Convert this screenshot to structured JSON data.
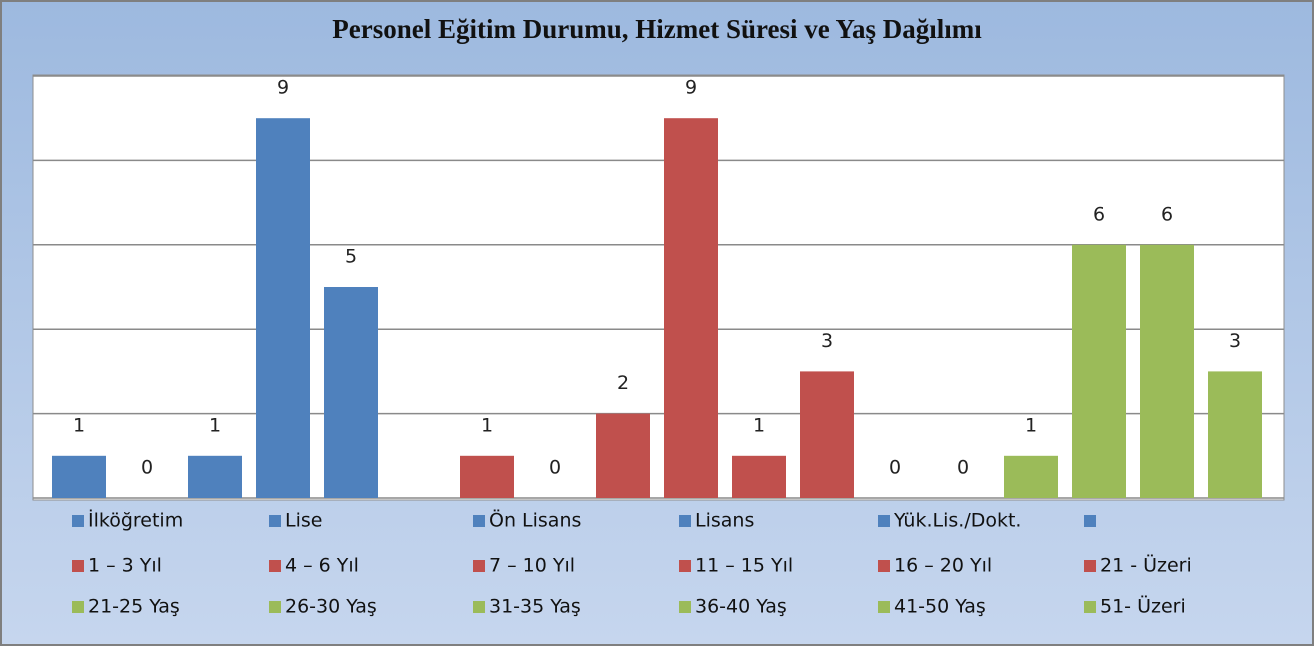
{
  "chart_data": {
    "type": "bar",
    "title": "Personel Eğitim Durumu, Hizmet Süresi ve Yaş Dağılımı",
    "categories": [
      "İlköğretim",
      "Lise",
      "Ön Lisans",
      "Lisans",
      "Yük.Lis./Dokt.",
      null,
      "1 – 3 Yıl",
      "4 – 6 Yıl",
      "7 – 10 Yıl",
      "11 – 15 Yıl",
      "16 – 20 Yıl",
      "21 - Üzeri",
      "21-25 Yaş",
      "26-30 Yaş",
      "31-35 Yaş",
      "36-40 Yaş",
      "41-50 Yaş",
      "51- Üzeri"
    ],
    "values": [
      1,
      0,
      1,
      9,
      5,
      null,
      1,
      0,
      2,
      9,
      1,
      3,
      0,
      0,
      1,
      6,
      6,
      3
    ],
    "colors": [
      "#4f81bd",
      "#4f81bd",
      "#4f81bd",
      "#4f81bd",
      "#4f81bd",
      "#4f81bd",
      "#c0504d",
      "#c0504d",
      "#c0504d",
      "#c0504d",
      "#c0504d",
      "#c0504d",
      "#9bbb59",
      "#9bbb59",
      "#9bbb59",
      "#9bbb59",
      "#9bbb59",
      "#9bbb59"
    ],
    "ylim": [
      0,
      10
    ],
    "yticks": [
      0,
      2,
      4,
      6,
      8,
      10
    ],
    "grid": true
  }
}
